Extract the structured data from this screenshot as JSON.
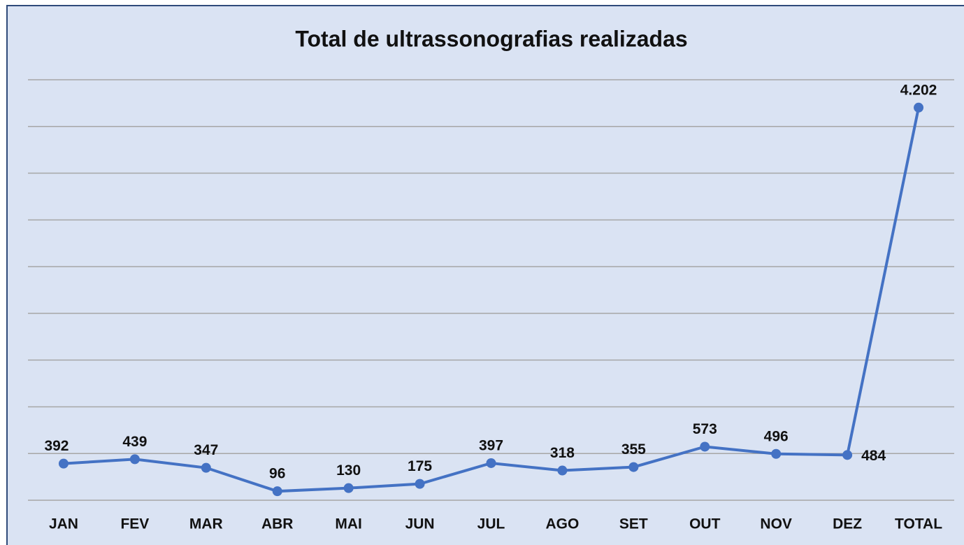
{
  "chart_data": {
    "type": "line",
    "title": "Total de ultrassonografias realizadas",
    "categories": [
      "JAN",
      "FEV",
      "MAR",
      "ABR",
      "MAI",
      "JUN",
      "JUL",
      "AGO",
      "SET",
      "OUT",
      "NOV",
      "DEZ",
      "TOTAL"
    ],
    "series": [
      {
        "name": "Total",
        "color": "#4472c4",
        "values": [
          392,
          439,
          347,
          96,
          130,
          175,
          397,
          318,
          355,
          573,
          496,
          484,
          4202
        ],
        "value_labels": [
          "392",
          "439",
          "347",
          "96",
          "130",
          "175",
          "397",
          "318",
          "355",
          "573",
          "496",
          "484",
          "4.202"
        ]
      }
    ],
    "ylim": [
      0,
      4500
    ],
    "yticks": [
      0,
      500,
      1000,
      1500,
      2000,
      2500,
      3000,
      3500,
      4000,
      4500
    ],
    "grid": true
  }
}
